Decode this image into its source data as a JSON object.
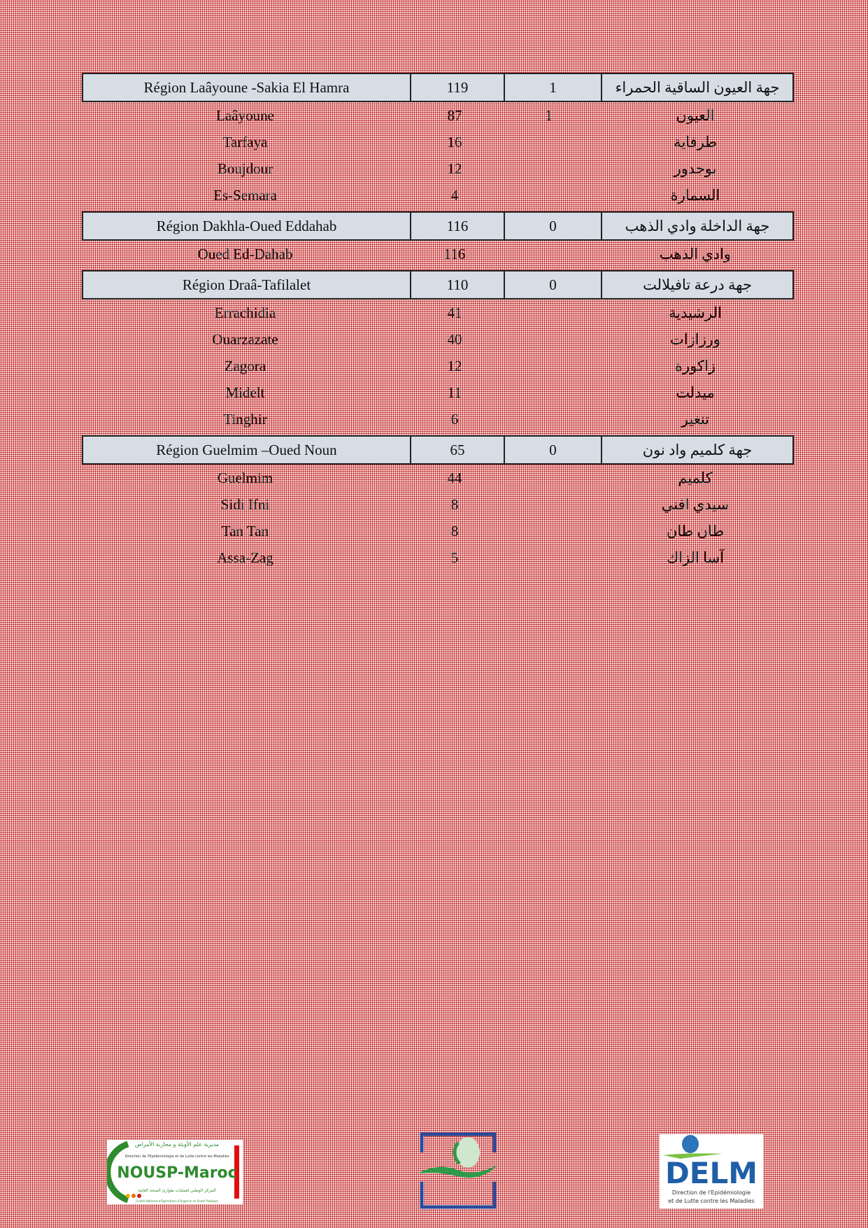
{
  "regions": [
    {
      "name_fr": "Région Laâyoune -Sakia El Hamra",
      "total": "119",
      "col3": "1",
      "name_ar": "جهة العيون الساقية الحمراء",
      "provinces": [
        {
          "fr": "Laâyoune",
          "count": "87",
          "col3": "1",
          "ar": "العيون"
        },
        {
          "fr": "Tarfaya",
          "count": "16",
          "col3": "",
          "ar": "طرفاية"
        },
        {
          "fr": "Boujdour",
          "count": "12",
          "col3": "",
          "ar": "بوجدور"
        },
        {
          "fr": "Es-Semara",
          "count": "4",
          "col3": "",
          "ar": "السمارة"
        }
      ]
    },
    {
      "name_fr": "Région Dakhla-Oued Eddahab",
      "total": "116",
      "col3": "0",
      "name_ar": "جهة الداخلة وادي الذهب",
      "provinces": [
        {
          "fr": "Oued Ed-Dahab",
          "count": "116",
          "col3": "",
          "ar": "وادي الذهب"
        }
      ]
    },
    {
      "name_fr": "Région Draâ-Tafilalet",
      "total": "110",
      "col3": "0",
      "name_ar": "جهة درعة تافيلالت",
      "provinces": [
        {
          "fr": "Errachidia",
          "count": "41",
          "col3": "",
          "ar": "الرشيدية"
        },
        {
          "fr": "Ouarzazate",
          "count": "40",
          "col3": "",
          "ar": "ورزازات"
        },
        {
          "fr": "Zagora",
          "count": "12",
          "col3": "",
          "ar": "زاكورة"
        },
        {
          "fr": "Midelt",
          "count": "11",
          "col3": "",
          "ar": "ميدلت"
        },
        {
          "fr": "Tinghir",
          "count": "6",
          "col3": "",
          "ar": "تنغير"
        }
      ]
    },
    {
      "name_fr": "Région Guelmim –Oued Noun",
      "total": "65",
      "col3": "0",
      "name_ar": "جهة كلميم واد نون",
      "provinces": [
        {
          "fr": "Guelmim",
          "count": "44",
          "col3": "",
          "ar": "كلميم"
        },
        {
          "fr": "Sidi Ifni",
          "count": "8",
          "col3": "",
          "ar": "سيدي افني"
        },
        {
          "fr": "Tan Tan",
          "count": "8",
          "col3": "",
          "ar": "طان طان"
        },
        {
          "fr": "Assa-Zag",
          "count": "5",
          "col3": "",
          "ar": "آسا الزاك"
        }
      ]
    }
  ],
  "logos": {
    "nousp": {
      "title": "NOUSP-Maroc",
      "ar_top": "مديرية علم الأوبئة و محاربة الأمراض",
      "fr_top": "Direction de l'Epidémiologie et de Lutte contre les Maladies",
      "ar_bottom": "المركز الوطني لعمليات طوارئ الصحة العامة",
      "fr_bottom": "Centre National d'Opérations d'Urgence en Santé Publique"
    },
    "delm": {
      "title": "DELM",
      "line1": "Direction de l'Epidémiologie",
      "line2": "et de Lutte contre les Maladies"
    }
  },
  "colors": {
    "header_bg": "#d6dde5",
    "pattern": "#b80000",
    "logo_green": "#2e8b2e",
    "logo_blue": "#1f5fa8"
  }
}
